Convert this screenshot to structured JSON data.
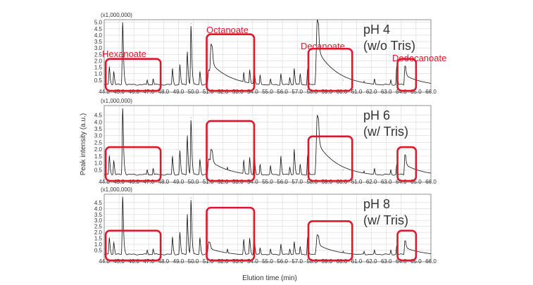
{
  "chart_data": {
    "type": "line",
    "ylabel": "Peak intensity (a.u.)",
    "xlabel": "Elution time (min)",
    "xlim": [
      44.0,
      66.0
    ],
    "x_ticks": [
      "44.0",
      "45.0",
      "46.0",
      "47.0",
      "48.0",
      "49.0",
      "50.0",
      "51.0",
      "52.0",
      "53.0",
      "54.0",
      "55.0",
      "56.0",
      "57.0",
      "58.0",
      "59.0",
      "60.0",
      "61.0",
      "62.0",
      "63.0",
      "64.0",
      "65.0",
      "66.0"
    ],
    "y_multiplier": "(x1,000,000)",
    "panels": [
      {
        "label_line1": "pH 4",
        "label_line2": "(w/o Tris)",
        "ylim": [
          0,
          5.2
        ],
        "y_ticks": [
          "0.5",
          "1.0",
          "1.5",
          "2.0",
          "2.5",
          "3.0",
          "3.5",
          "4.0",
          "4.5",
          "5.0"
        ],
        "annotations": [
          "Hexanoate",
          "Octanoate",
          "Decanoate",
          "Dodecanoate"
        ],
        "peaks": [
          [
            44.35,
            1.6
          ],
          [
            44.65,
            1.2
          ],
          [
            45.25,
            5.2
          ],
          [
            46.9,
            0.5
          ],
          [
            47.3,
            0.6
          ],
          [
            48.6,
            1.4
          ],
          [
            49.1,
            1.7
          ],
          [
            49.6,
            2.7
          ],
          [
            49.85,
            4.9
          ],
          [
            50.45,
            1.2
          ],
          [
            51.05,
            1.3
          ],
          [
            51.2,
            3.3
          ],
          [
            52.3,
            0.8
          ],
          [
            53.4,
            1.1
          ],
          [
            53.8,
            1.3
          ],
          [
            54.1,
            1.6
          ],
          [
            54.5,
            0.9
          ],
          [
            55.2,
            0.6
          ],
          [
            55.9,
            1.0
          ],
          [
            56.5,
            0.7
          ],
          [
            56.8,
            1.4
          ],
          [
            57.2,
            1.0
          ],
          [
            57.7,
            1.4
          ],
          [
            58.35,
            5.2
          ],
          [
            60.1,
            0.5
          ],
          [
            61.5,
            0.4
          ],
          [
            62.2,
            0.6
          ],
          [
            63.3,
            0.5
          ],
          [
            63.7,
            1.6
          ],
          [
            64.25,
            1.6
          ]
        ],
        "boxes": [
          [
            44.1,
            47.8
          ],
          [
            50.9,
            54.1
          ],
          [
            57.75,
            60.7
          ],
          [
            63.75,
            65.0
          ]
        ]
      },
      {
        "label_line1": "pH 6",
        "label_line2": "(w/ Tris)",
        "ylim": [
          0,
          5.2
        ],
        "y_ticks": [
          "0.5",
          "1.0",
          "1.5",
          "2.0",
          "2.5",
          "3.0",
          "3.5",
          "4.0",
          "4.5"
        ],
        "annotations": [],
        "peaks": [
          [
            44.35,
            1.6
          ],
          [
            44.65,
            1.2
          ],
          [
            45.25,
            5.2
          ],
          [
            46.9,
            0.5
          ],
          [
            47.3,
            0.6
          ],
          [
            48.6,
            1.5
          ],
          [
            49.1,
            1.9
          ],
          [
            49.6,
            3.0
          ],
          [
            49.85,
            4.3
          ],
          [
            50.45,
            1.3
          ],
          [
            51.05,
            1.3
          ],
          [
            51.2,
            2.0
          ],
          [
            52.3,
            0.7
          ],
          [
            53.4,
            1.2
          ],
          [
            53.8,
            1.4
          ],
          [
            54.1,
            2.0
          ],
          [
            54.5,
            0.9
          ],
          [
            55.2,
            0.8
          ],
          [
            55.9,
            1.5
          ],
          [
            56.5,
            0.7
          ],
          [
            56.8,
            2.0
          ],
          [
            57.2,
            0.9
          ],
          [
            57.7,
            1.6
          ],
          [
            58.35,
            4.5
          ],
          [
            60.1,
            0.5
          ],
          [
            61.5,
            0.4
          ],
          [
            62.2,
            0.6
          ],
          [
            63.3,
            0.5
          ],
          [
            63.7,
            0.9
          ],
          [
            64.25,
            1.6
          ]
        ],
        "boxes": [
          [
            44.1,
            47.8
          ],
          [
            50.9,
            54.1
          ],
          [
            57.75,
            60.7
          ],
          [
            63.75,
            65.0
          ]
        ]
      },
      {
        "label_line1": "pH 8",
        "label_line2": "(w/ Tris)",
        "ylim": [
          0,
          5.2
        ],
        "y_ticks": [
          "0.5",
          "1.0",
          "1.5",
          "2.0",
          "2.5",
          "3.0",
          "3.5",
          "4.0",
          "4.5"
        ],
        "annotations": [],
        "peaks": [
          [
            44.35,
            1.6
          ],
          [
            44.65,
            1.2
          ],
          [
            45.25,
            5.2
          ],
          [
            46.9,
            0.5
          ],
          [
            47.3,
            0.6
          ],
          [
            48.6,
            1.6
          ],
          [
            49.1,
            2.0
          ],
          [
            49.6,
            3.5
          ],
          [
            49.85,
            4.9
          ],
          [
            50.45,
            1.6
          ],
          [
            51.05,
            1.2
          ],
          [
            51.2,
            0.6
          ],
          [
            52.3,
            0.6
          ],
          [
            53.4,
            1.4
          ],
          [
            53.8,
            1.5
          ],
          [
            54.1,
            1.8
          ],
          [
            54.5,
            0.7
          ],
          [
            55.2,
            0.6
          ],
          [
            55.9,
            1.0
          ],
          [
            56.5,
            0.6
          ],
          [
            56.8,
            1.2
          ],
          [
            57.2,
            0.8
          ],
          [
            57.7,
            1.6
          ],
          [
            58.35,
            1.8
          ],
          [
            60.1,
            0.4
          ],
          [
            61.5,
            0.4
          ],
          [
            62.2,
            0.5
          ],
          [
            63.3,
            0.5
          ],
          [
            63.7,
            0.9
          ],
          [
            64.25,
            1.3
          ]
        ],
        "boxes": [
          [
            44.1,
            47.8
          ],
          [
            50.9,
            54.1
          ],
          [
            57.75,
            60.7
          ],
          [
            63.75,
            65.0
          ]
        ]
      }
    ]
  }
}
